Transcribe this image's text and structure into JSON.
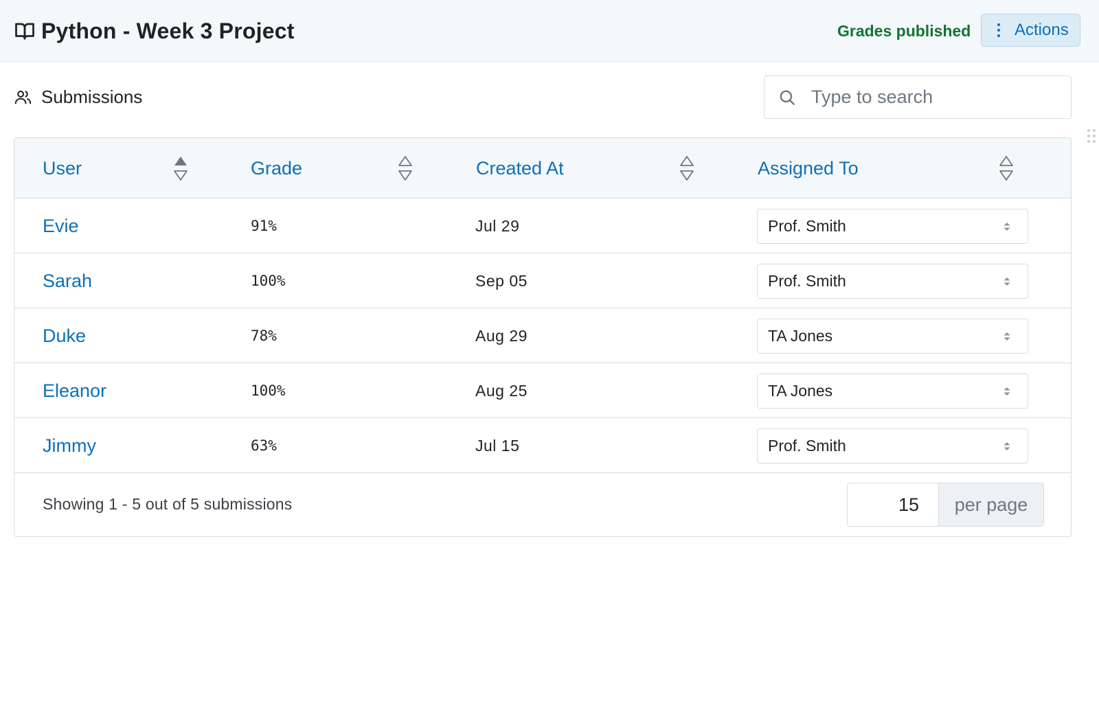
{
  "header": {
    "title": "Python - Week 3 Project",
    "status": "Grades published",
    "actions_label": "Actions",
    "title_icon": "book-open-icon",
    "actions_icon": "kebab-icon"
  },
  "section": {
    "title": "Submissions",
    "icon": "users-icon"
  },
  "search": {
    "placeholder": "Type to search",
    "value": "",
    "icon": "search-icon"
  },
  "table": {
    "columns": [
      {
        "label": "User",
        "sort": "ascending"
      },
      {
        "label": "Grade",
        "sort": "none"
      },
      {
        "label": "Created At",
        "sort": "none"
      },
      {
        "label": "Assigned To",
        "sort": "none"
      }
    ],
    "rows": [
      {
        "user": "Evie",
        "grade": "91%",
        "created_at": "Jul 29",
        "assigned_to": "Prof. Smith"
      },
      {
        "user": "Sarah",
        "grade": "100%",
        "created_at": "Sep 05",
        "assigned_to": "Prof. Smith"
      },
      {
        "user": "Duke",
        "grade": "78%",
        "created_at": "Aug 29",
        "assigned_to": "TA Jones"
      },
      {
        "user": "Eleanor",
        "grade": "100%",
        "created_at": "Aug 25",
        "assigned_to": "TA Jones"
      },
      {
        "user": "Jimmy",
        "grade": "63%",
        "created_at": "Jul 15",
        "assigned_to": "Prof. Smith"
      }
    ]
  },
  "footer": {
    "showing": "Showing 1 - 5 out of 5 submissions",
    "per_page_value": "15",
    "per_page_label": "per page"
  },
  "colors": {
    "accent": "#0d6fb8",
    "published": "#137333",
    "header_bg": "#f4f8fa",
    "border": "#d7dde2"
  }
}
